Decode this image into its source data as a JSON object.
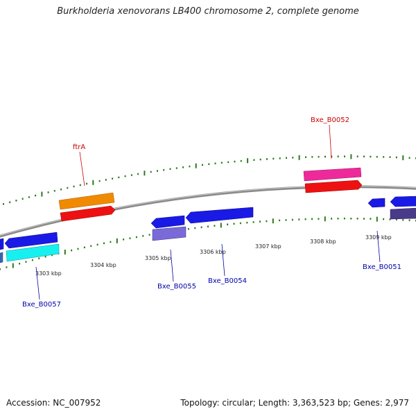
{
  "title": "Burkholderia xenovorans LB400 chromosome 2, complete genome",
  "footer": {
    "accession": "Accession: NC_007952",
    "summary": "Topology: circular; Length: 3,363,523 bp; Genes: 2,977"
  },
  "axis_labels": [
    "3303 kbp",
    "3304 kbp",
    "3305 kbp",
    "3306 kbp",
    "3307 kbp",
    "3308 kbp",
    "3309 kbp"
  ],
  "gene_labels": [
    {
      "text": "ftrA",
      "color": "#cc0000"
    },
    {
      "text": "Bxe_B0052",
      "color": "#cc0000"
    },
    {
      "text": "Bxe_B0057",
      "color": "#0000aa"
    },
    {
      "text": "Bxe_B0055",
      "color": "#0000aa"
    },
    {
      "text": "Bxe_B0054",
      "color": "#0000aa"
    },
    {
      "text": "Bxe_B0051",
      "color": "#0000aa"
    }
  ],
  "colors": {
    "backbone": "#8a8a8a",
    "tick": "#2a7a1a",
    "blue": "#1a1ae6",
    "red": "#ee1111",
    "orange": "#f08a00",
    "magenta": "#ee2a9a",
    "cyan": "#18f0f0",
    "lavender": "#7a6ad8",
    "dark_purple": "#4a3a8a",
    "steelblue": "#3a6ab0"
  }
}
